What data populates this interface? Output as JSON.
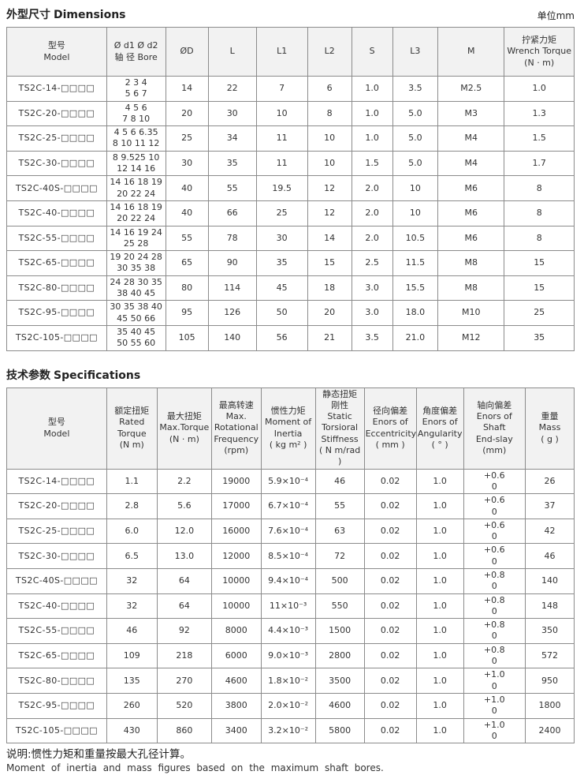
{
  "dimensions": {
    "title_cn": "外型尺寸",
    "title_en": "Dimensions",
    "unit_label": "单位mm",
    "columns": [
      [
        "型号",
        "Model"
      ],
      [
        "Ø d1 Ø d2",
        "轴 径 Bore"
      ],
      [
        "ØD"
      ],
      [
        "L"
      ],
      [
        "L1"
      ],
      [
        "L2"
      ],
      [
        "S"
      ],
      [
        "L3"
      ],
      [
        "M"
      ],
      [
        "拧紧力矩",
        "Wrench Torque",
        "(N · m)"
      ]
    ],
    "rows": [
      [
        [
          "TS2C-14-□□□□"
        ],
        [
          "2 3 4",
          "5 6 7"
        ],
        [
          "14"
        ],
        [
          "22"
        ],
        [
          "7"
        ],
        [
          "6"
        ],
        [
          "1.0"
        ],
        [
          "3.5"
        ],
        [
          "M2.5"
        ],
        [
          "1.0"
        ]
      ],
      [
        [
          "TS2C-20-□□□□"
        ],
        [
          "4 5 6",
          "7 8 10"
        ],
        [
          "20"
        ],
        [
          "30"
        ],
        [
          "10"
        ],
        [
          "8"
        ],
        [
          "1.0"
        ],
        [
          "5.0"
        ],
        [
          "M3"
        ],
        [
          "1.3"
        ]
      ],
      [
        [
          "TS2C-25-□□□□"
        ],
        [
          "4 5 6 6.35",
          "8 10 11 12"
        ],
        [
          "25"
        ],
        [
          "34"
        ],
        [
          "11"
        ],
        [
          "10"
        ],
        [
          "1.0"
        ],
        [
          "5.0"
        ],
        [
          "M4"
        ],
        [
          "1.5"
        ]
      ],
      [
        [
          "TS2C-30-□□□□"
        ],
        [
          "8 9.525 10",
          "12 14 16"
        ],
        [
          "30"
        ],
        [
          "35"
        ],
        [
          "11"
        ],
        [
          "10"
        ],
        [
          "1.5"
        ],
        [
          "5.0"
        ],
        [
          "M4"
        ],
        [
          "1.7"
        ]
      ],
      [
        [
          "TS2C-40S-□□□□"
        ],
        [
          "14 16 18 19",
          "20 22 24"
        ],
        [
          "40"
        ],
        [
          "55"
        ],
        [
          "19.5"
        ],
        [
          "12"
        ],
        [
          "2.0"
        ],
        [
          "10"
        ],
        [
          "M6"
        ],
        [
          "8"
        ]
      ],
      [
        [
          "TS2C-40-□□□□"
        ],
        [
          "14 16 18 19",
          "20 22 24"
        ],
        [
          "40"
        ],
        [
          "66"
        ],
        [
          "25"
        ],
        [
          "12"
        ],
        [
          "2.0"
        ],
        [
          "10"
        ],
        [
          "M6"
        ],
        [
          "8"
        ]
      ],
      [
        [
          "TS2C-55-□□□□"
        ],
        [
          "14 16 19 24",
          "25 28"
        ],
        [
          "55"
        ],
        [
          "78"
        ],
        [
          "30"
        ],
        [
          "14"
        ],
        [
          "2.0"
        ],
        [
          "10.5"
        ],
        [
          "M6"
        ],
        [
          "8"
        ]
      ],
      [
        [
          "TS2C-65-□□□□"
        ],
        [
          "19 20 24 28",
          "30 35 38"
        ],
        [
          "65"
        ],
        [
          "90"
        ],
        [
          "35"
        ],
        [
          "15"
        ],
        [
          "2.5"
        ],
        [
          "11.5"
        ],
        [
          "M8"
        ],
        [
          "15"
        ]
      ],
      [
        [
          "TS2C-80-□□□□"
        ],
        [
          "24 28 30 35",
          "38 40 45"
        ],
        [
          "80"
        ],
        [
          "114"
        ],
        [
          "45"
        ],
        [
          "18"
        ],
        [
          "3.0"
        ],
        [
          "15.5"
        ],
        [
          "M8"
        ],
        [
          "15"
        ]
      ],
      [
        [
          "TS2C-95-□□□□"
        ],
        [
          "30 35 38 40",
          "45 50 66"
        ],
        [
          "95"
        ],
        [
          "126"
        ],
        [
          "50"
        ],
        [
          "20"
        ],
        [
          "3.0"
        ],
        [
          "18.0"
        ],
        [
          "M10"
        ],
        [
          "25"
        ]
      ],
      [
        [
          "TS2C-105-□□□□"
        ],
        [
          "35 40 45",
          "50 55 60"
        ],
        [
          "105"
        ],
        [
          "140"
        ],
        [
          "56"
        ],
        [
          "21"
        ],
        [
          "3.5"
        ],
        [
          "21.0"
        ],
        [
          "M12"
        ],
        [
          "35"
        ]
      ]
    ]
  },
  "specifications": {
    "title_cn": "技术参数",
    "title_en": "Specifications",
    "columns": [
      [
        "型号",
        "Model"
      ],
      [
        "额定扭矩",
        "Rated",
        "Torque",
        "(N m)"
      ],
      [
        "最大扭矩",
        "Max.Torque",
        "(N · m)"
      ],
      [
        "最高转速",
        "Max.",
        "Rotational",
        "Frequency",
        "(rpm)"
      ],
      [
        "惯性力矩",
        "Moment of",
        "Inertia",
        "( kg m² )"
      ],
      [
        "静态扭矩",
        "刚性",
        "Static",
        "Torsioral",
        "Stiffness",
        "( N m/rad )"
      ],
      [
        "径向偏差",
        "Enors of",
        "Eccentricity",
        "( mm )"
      ],
      [
        "角度偏差",
        "Enors of",
        "Angularity",
        "( ° )"
      ],
      [
        "轴向偏差",
        "Enors of Shaft",
        "End-slay",
        "(mm)"
      ],
      [
        "重量",
        "Mass",
        "( g )"
      ]
    ],
    "rows": [
      [
        [
          "TS2C-14-□□□□"
        ],
        [
          "1.1"
        ],
        [
          "2.2"
        ],
        [
          "19000"
        ],
        [
          "5.9×10⁻⁴"
        ],
        [
          "46"
        ],
        [
          "0.02"
        ],
        [
          "1.0"
        ],
        [
          "+0.6",
          "0"
        ],
        [
          "26"
        ]
      ],
      [
        [
          "TS2C-20-□□□□"
        ],
        [
          "2.8"
        ],
        [
          "5.6"
        ],
        [
          "17000"
        ],
        [
          "6.7×10⁻⁴"
        ],
        [
          "55"
        ],
        [
          "0.02"
        ],
        [
          "1.0"
        ],
        [
          "+0.6",
          "0"
        ],
        [
          "37"
        ]
      ],
      [
        [
          "TS2C-25-□□□□"
        ],
        [
          "6.0"
        ],
        [
          "12.0"
        ],
        [
          "16000"
        ],
        [
          "7.6×10⁻⁴"
        ],
        [
          "63"
        ],
        [
          "0.02"
        ],
        [
          "1.0"
        ],
        [
          "+0.6",
          "0"
        ],
        [
          "42"
        ]
      ],
      [
        [
          "TS2C-30-□□□□"
        ],
        [
          "6.5"
        ],
        [
          "13.0"
        ],
        [
          "12000"
        ],
        [
          "8.5×10⁻⁴"
        ],
        [
          "72"
        ],
        [
          "0.02"
        ],
        [
          "1.0"
        ],
        [
          "+0.6",
          "0"
        ],
        [
          "46"
        ]
      ],
      [
        [
          "TS2C-40S-□□□□"
        ],
        [
          "32"
        ],
        [
          "64"
        ],
        [
          "10000"
        ],
        [
          "9.4×10⁻⁴"
        ],
        [
          "500"
        ],
        [
          "0.02"
        ],
        [
          "1.0"
        ],
        [
          "+0.8",
          "0"
        ],
        [
          "140"
        ]
      ],
      [
        [
          "TS2C-40-□□□□"
        ],
        [
          "32"
        ],
        [
          "64"
        ],
        [
          "10000"
        ],
        [
          "11×10⁻³"
        ],
        [
          "550"
        ],
        [
          "0.02"
        ],
        [
          "1.0"
        ],
        [
          "+0.8",
          "0"
        ],
        [
          "148"
        ]
      ],
      [
        [
          "TS2C-55-□□□□"
        ],
        [
          "46"
        ],
        [
          "92"
        ],
        [
          "8000"
        ],
        [
          "4.4×10⁻³"
        ],
        [
          "1500"
        ],
        [
          "0.02"
        ],
        [
          "1.0"
        ],
        [
          "+0.8",
          "0"
        ],
        [
          "350"
        ]
      ],
      [
        [
          "TS2C-65-□□□□"
        ],
        [
          "109"
        ],
        [
          "218"
        ],
        [
          "6000"
        ],
        [
          "9.0×10⁻³"
        ],
        [
          "2800"
        ],
        [
          "0.02"
        ],
        [
          "1.0"
        ],
        [
          "+0.8",
          "0"
        ],
        [
          "572"
        ]
      ],
      [
        [
          "TS2C-80-□□□□"
        ],
        [
          "135"
        ],
        [
          "270"
        ],
        [
          "4600"
        ],
        [
          "1.8×10⁻²"
        ],
        [
          "3500"
        ],
        [
          "0.02"
        ],
        [
          "1.0"
        ],
        [
          "+1.0",
          "0"
        ],
        [
          "950"
        ]
      ],
      [
        [
          "TS2C-95-□□□□"
        ],
        [
          "260"
        ],
        [
          "520"
        ],
        [
          "3800"
        ],
        [
          "2.0×10⁻²"
        ],
        [
          "4600"
        ],
        [
          "0.02"
        ],
        [
          "1.0"
        ],
        [
          "+1.0",
          "0"
        ],
        [
          "1800"
        ]
      ],
      [
        [
          "TS2C-105-□□□□"
        ],
        [
          "430"
        ],
        [
          "860"
        ],
        [
          "3400"
        ],
        [
          "3.2×10⁻²"
        ],
        [
          "5800"
        ],
        [
          "0.02"
        ],
        [
          "1.0"
        ],
        [
          "+1.0",
          "0"
        ],
        [
          "2400"
        ]
      ]
    ]
  },
  "footnote": {
    "cn": "说明:惯性力矩和重量按最大孔径计算。",
    "en": "Moment of inertia and mass figures based on the maximum shaft bores."
  },
  "colors": {
    "header_bg": "#f2f2f2",
    "border": "#8b8b8b",
    "text": "#333333"
  }
}
